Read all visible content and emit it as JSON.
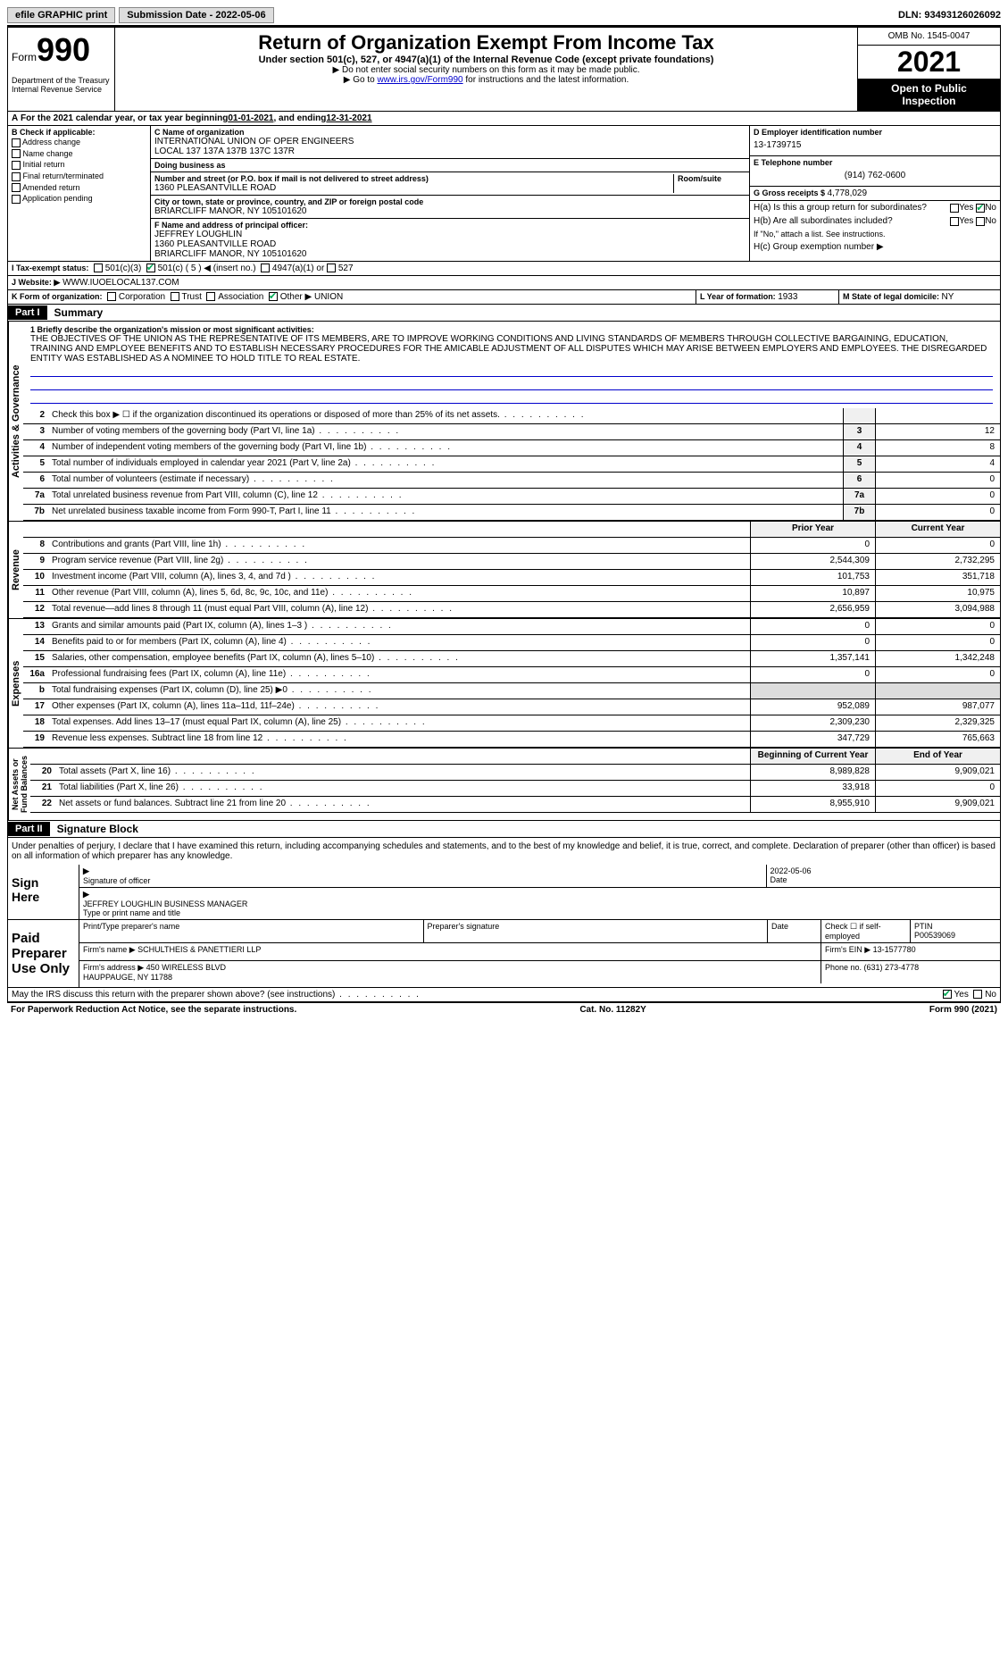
{
  "topbar": {
    "efile": "efile GRAPHIC print",
    "sub_label": "Submission Date - ",
    "sub_date": "2022-05-06",
    "dln_label": "DLN: ",
    "dln": "93493126026092"
  },
  "header": {
    "form_word": "Form",
    "form_num": "990",
    "dept": "Department of the Treasury\nInternal Revenue Service",
    "title": "Return of Organization Exempt From Income Tax",
    "sub1": "Under section 501(c), 527, or 4947(a)(1) of the Internal Revenue Code (except private foundations)",
    "sub2": "▶ Do not enter social security numbers on this form as it may be made public.",
    "sub3_pre": "▶ Go to ",
    "sub3_link": "www.irs.gov/Form990",
    "sub3_post": " for instructions and the latest information.",
    "omb": "OMB No. 1545-0047",
    "year": "2021",
    "public1": "Open to Public",
    "public2": "Inspection"
  },
  "lineA": {
    "text": "For the 2021 calendar year, or tax year beginning ",
    "begin": "01-01-2021",
    "mid": " , and ending ",
    "end": "12-31-2021"
  },
  "secB": {
    "label": "B Check if applicable:",
    "items": [
      "Address change",
      "Name change",
      "Initial return",
      "Final return/terminated",
      "Amended return",
      "Application pending"
    ]
  },
  "secC": {
    "name_label": "C Name of organization",
    "name": "INTERNATIONAL UNION OF OPER ENGINEERS\nLOCAL 137 137A 137B 137C 137R",
    "dba_label": "Doing business as",
    "dba": "",
    "addr_label": "Number and street (or P.O. box if mail is not delivered to street address)",
    "addr": "1360 PLEASANTVILLE ROAD",
    "room_label": "Room/suite",
    "room": "",
    "city_label": "City or town, state or province, country, and ZIP or foreign postal code",
    "city": "BRIARCLIFF MANOR, NY  105101620"
  },
  "secD": {
    "label": "D Employer identification number",
    "val": "13-1739715"
  },
  "secE": {
    "label": "E Telephone number",
    "val": "(914) 762-0600"
  },
  "secG": {
    "label": "G Gross receipts $ ",
    "val": "4,778,029"
  },
  "secF": {
    "label": "F Name and address of principal officer:",
    "name": "JEFFREY LOUGHLIN",
    "addr1": "1360 PLEASANTVILLE ROAD",
    "addr2": "BRIARCLIFF MANOR, NY  105101620"
  },
  "secH": {
    "a": "H(a)  Is this a group return for subordinates?",
    "b": "H(b)  Are all subordinates included?",
    "b_note": "If \"No,\" attach a list. See instructions.",
    "c": "H(c)  Group exemption number ▶",
    "yes": "Yes",
    "no": "No"
  },
  "secI": {
    "label": "I  Tax-exempt status:",
    "opts": [
      "501(c)(3)",
      "501(c) ( 5 ) ◀ (insert no.)",
      "4947(a)(1) or",
      "527"
    ]
  },
  "secJ": {
    "label": "J  Website: ▶",
    "val": "WWW.IUOELOCAL137.COM"
  },
  "secK": {
    "label": "K Form of organization:",
    "opts": [
      "Corporation",
      "Trust",
      "Association",
      "Other ▶"
    ],
    "other": "UNION"
  },
  "secL": {
    "label": "L Year of formation: ",
    "val": "1933"
  },
  "secM": {
    "label": "M State of legal domicile: ",
    "val": "NY"
  },
  "part1": {
    "num": "Part I",
    "title": "Summary"
  },
  "mission": {
    "label": "1  Briefly describe the organization's mission or most significant activities:",
    "text": "THE OBJECTIVES OF THE UNION AS THE REPRESENTATIVE OF ITS MEMBERS, ARE TO IMPROVE WORKING CONDITIONS AND LIVING STANDARDS OF MEMBERS THROUGH COLLECTIVE BARGAINING, EDUCATION, TRAINING AND EMPLOYEE BENEFITS AND TO ESTABLISH NECESSARY PROCEDURES FOR THE AMICABLE ADJUSTMENT OF ALL DISPUTES WHICH MAY ARISE BETWEEN EMPLOYERS AND EMPLOYEES. THE DISREGARDED ENTITY WAS ESTABLISHED AS A NOMINEE TO HOLD TITLE TO REAL ESTATE."
  },
  "vside": {
    "activities": "Activities & Governance",
    "revenue": "Revenue",
    "expenses": "Expenses",
    "netassets": "Net Assets or\nFund Balances"
  },
  "lines_gov": [
    {
      "n": "2",
      "t": "Check this box ▶ ☐  if the organization discontinued its operations or disposed of more than 25% of its net assets.",
      "box": "",
      "v": ""
    },
    {
      "n": "3",
      "t": "Number of voting members of the governing body (Part VI, line 1a)",
      "box": "3",
      "v": "12"
    },
    {
      "n": "4",
      "t": "Number of independent voting members of the governing body (Part VI, line 1b)",
      "box": "4",
      "v": "8"
    },
    {
      "n": "5",
      "t": "Total number of individuals employed in calendar year 2021 (Part V, line 2a)",
      "box": "5",
      "v": "4"
    },
    {
      "n": "6",
      "t": "Total number of volunteers (estimate if necessary)",
      "box": "6",
      "v": "0"
    },
    {
      "n": "7a",
      "t": "Total unrelated business revenue from Part VIII, column (C), line 12",
      "box": "7a",
      "v": "0"
    },
    {
      "n": "7b",
      "t": "Net unrelated business taxable income from Form 990-T, Part I, line 11",
      "box": "7b",
      "v": "0"
    }
  ],
  "col_hdrs": {
    "prior": "Prior Year",
    "current": "Current Year",
    "bcy": "Beginning of Current Year",
    "eoy": "End of Year"
  },
  "lines_rev": [
    {
      "n": "8",
      "t": "Contributions and grants (Part VIII, line 1h)",
      "p": "0",
      "c": "0"
    },
    {
      "n": "9",
      "t": "Program service revenue (Part VIII, line 2g)",
      "p": "2,544,309",
      "c": "2,732,295"
    },
    {
      "n": "10",
      "t": "Investment income (Part VIII, column (A), lines 3, 4, and 7d )",
      "p": "101,753",
      "c": "351,718"
    },
    {
      "n": "11",
      "t": "Other revenue (Part VIII, column (A), lines 5, 6d, 8c, 9c, 10c, and 11e)",
      "p": "10,897",
      "c": "10,975"
    },
    {
      "n": "12",
      "t": "Total revenue—add lines 8 through 11 (must equal Part VIII, column (A), line 12)",
      "p": "2,656,959",
      "c": "3,094,988"
    }
  ],
  "lines_exp": [
    {
      "n": "13",
      "t": "Grants and similar amounts paid (Part IX, column (A), lines 1–3 )",
      "p": "0",
      "c": "0"
    },
    {
      "n": "14",
      "t": "Benefits paid to or for members (Part IX, column (A), line 4)",
      "p": "0",
      "c": "0"
    },
    {
      "n": "15",
      "t": "Salaries, other compensation, employee benefits (Part IX, column (A), lines 5–10)",
      "p": "1,357,141",
      "c": "1,342,248"
    },
    {
      "n": "16a",
      "t": "Professional fundraising fees (Part IX, column (A), line 11e)",
      "p": "0",
      "c": "0"
    },
    {
      "n": "b",
      "t": "Total fundraising expenses (Part IX, column (D), line 25) ▶0",
      "p": "",
      "c": "",
      "shade": true
    },
    {
      "n": "17",
      "t": "Other expenses (Part IX, column (A), lines 11a–11d, 11f–24e)",
      "p": "952,089",
      "c": "987,077"
    },
    {
      "n": "18",
      "t": "Total expenses. Add lines 13–17 (must equal Part IX, column (A), line 25)",
      "p": "2,309,230",
      "c": "2,329,325"
    },
    {
      "n": "19",
      "t": "Revenue less expenses. Subtract line 18 from line 12",
      "p": "347,729",
      "c": "765,663"
    }
  ],
  "lines_net": [
    {
      "n": "20",
      "t": "Total assets (Part X, line 16)",
      "p": "8,989,828",
      "c": "9,909,021"
    },
    {
      "n": "21",
      "t": "Total liabilities (Part X, line 26)",
      "p": "33,918",
      "c": "0"
    },
    {
      "n": "22",
      "t": "Net assets or fund balances. Subtract line 21 from line 20",
      "p": "8,955,910",
      "c": "9,909,021"
    }
  ],
  "part2": {
    "num": "Part II",
    "title": "Signature Block"
  },
  "penalties": "Under penalties of perjury, I declare that I have examined this return, including accompanying schedules and statements, and to the best of my knowledge and belief, it is true, correct, and complete. Declaration of preparer (other than officer) is based on all information of which preparer has any knowledge.",
  "sign": {
    "here": "Sign\nHere",
    "sig_label": "Signature of officer",
    "date_label": "Date",
    "date": "2022-05-06",
    "name": "JEFFREY LOUGHLIN  BUSINESS MANAGER",
    "name_label": "Type or print name and title"
  },
  "paid": {
    "label": "Paid\nPreparer\nUse Only",
    "h1": "Print/Type preparer's name",
    "h2": "Preparer's signature",
    "h3": "Date",
    "h4_pre": "Check ☐ if self-employed",
    "h5": "PTIN",
    "ptin": "P00539069",
    "firm_label": "Firm's name  ▶ ",
    "firm": "SCHULTHEIS & PANETTIERI LLP",
    "ein_label": "Firm's EIN ▶ ",
    "ein": "13-1577780",
    "addr_label": "Firm's address ▶ ",
    "addr": "450 WIRELESS BLVD\nHAUPPAUGE, NY  11788",
    "phone_label": "Phone no. ",
    "phone": "(631) 273-4778"
  },
  "discuss": {
    "text": "May the IRS discuss this return with the preparer shown above? (see instructions)",
    "yes": "Yes",
    "no": "No"
  },
  "footer": {
    "left": "For Paperwork Reduction Act Notice, see the separate instructions.",
    "mid": "Cat. No. 11282Y",
    "right": "Form 990 (2021)"
  }
}
